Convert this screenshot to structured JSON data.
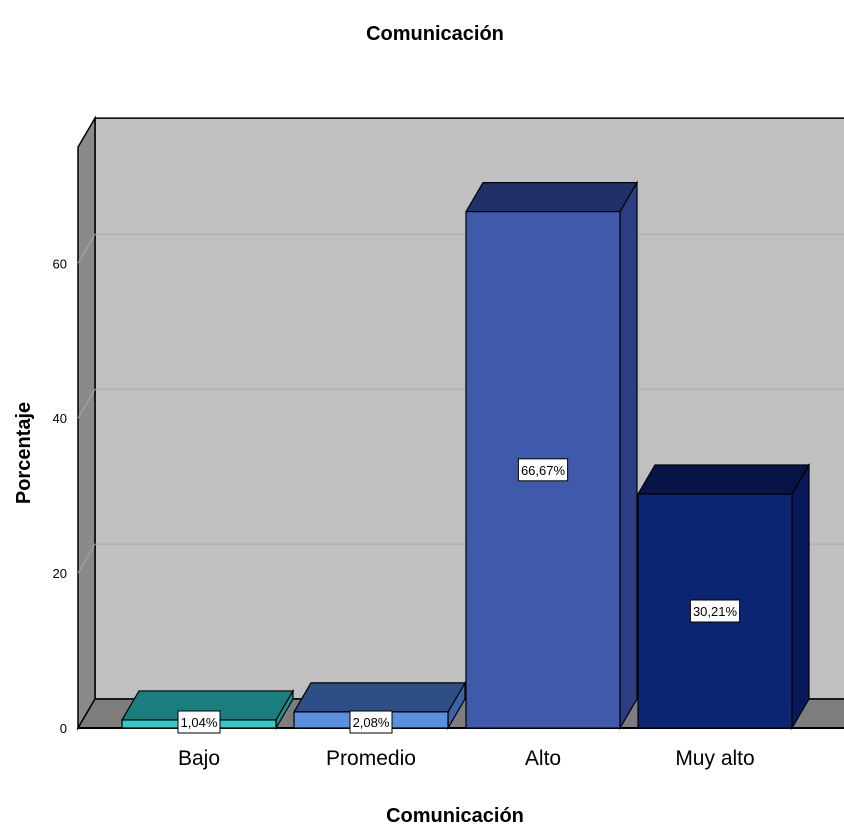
{
  "chart_data": {
    "type": "bar",
    "title": "Comunicación",
    "xlabel": "Comunicación",
    "ylabel": "Porcentaje",
    "categories": [
      "Bajo",
      "Promedio",
      "Alto",
      "Muy alto"
    ],
    "values": [
      1.04,
      2.08,
      66.67,
      30.21
    ],
    "data_labels": [
      "1,04%",
      "2,08%",
      "66,67%",
      "30,21%"
    ],
    "yticks": [
      "0",
      "20",
      "40",
      "60"
    ],
    "ylim": [
      0,
      75
    ],
    "grid": true,
    "bar_colors": [
      {
        "front": "#33c9c9",
        "top": "#1a7e7e",
        "side": "#1f8f8f"
      },
      {
        "front": "#5b8fe0",
        "top": "#2e4f86",
        "side": "#3a63a8"
      },
      {
        "front": "#3f5aab",
        "top": "#22306a",
        "side": "#2c3f84"
      },
      {
        "front": "#0b2573",
        "top": "#061447",
        "side": "#07195a"
      }
    ],
    "wall_color": "#c0c0c0",
    "floor_color": "#7d7d7d"
  }
}
